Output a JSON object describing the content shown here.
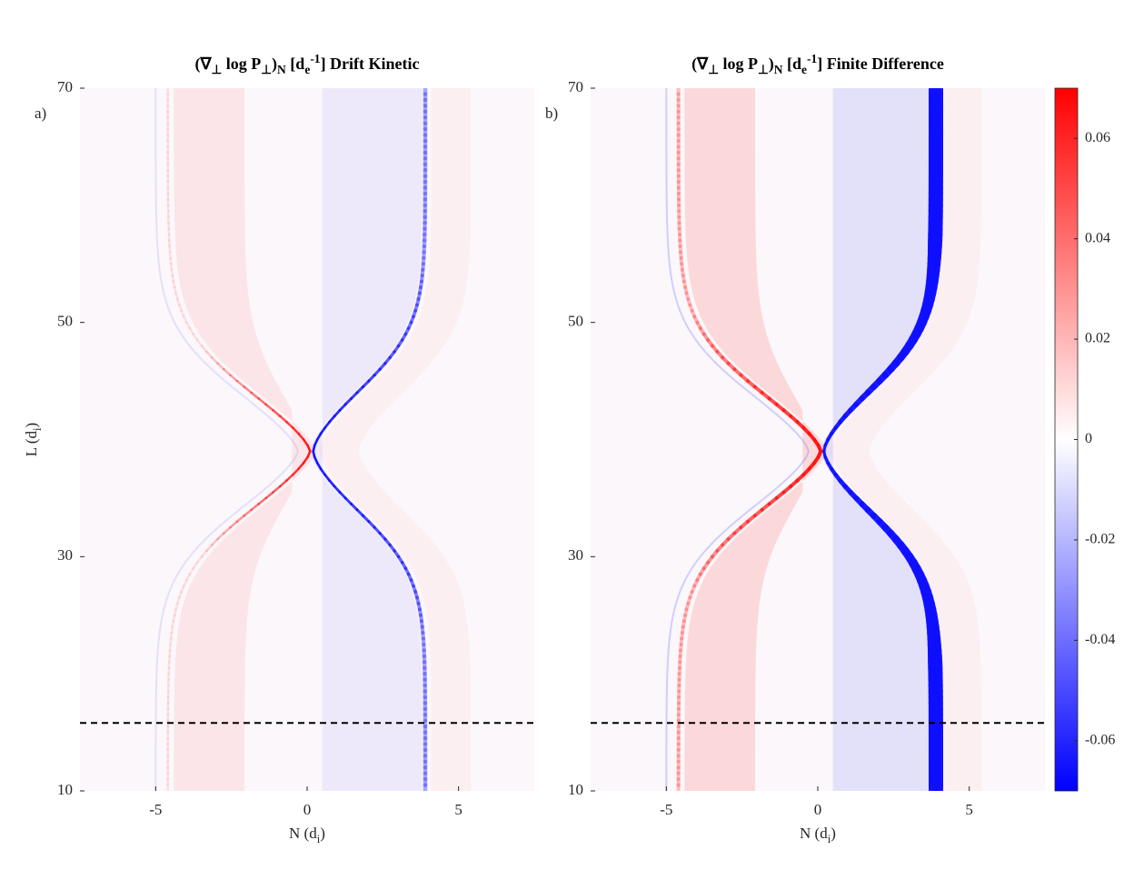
{
  "chart_data": [
    {
      "type": "heatmap",
      "title": [
        "(∇",
        "⊥",
        " log P",
        "⊥",
        ")",
        "N",
        " [d",
        "e",
        "-1",
        "] Drift Kinetic"
      ],
      "panel_label": "a)",
      "xlabel": [
        "N (d",
        "i",
        ")"
      ],
      "ylabel": [
        "L (d",
        "i",
        ")"
      ],
      "xlim": [
        -7.5,
        7.5
      ],
      "xticks": [
        -5,
        0,
        5
      ],
      "ylim": [
        10,
        70
      ],
      "yticks": [
        10,
        30,
        50,
        70
      ],
      "hline": 15.8
    },
    {
      "type": "heatmap",
      "title": [
        "(∇",
        "⊥",
        " log P",
        "⊥",
        ")",
        "N",
        " [d",
        "e",
        "-1",
        "] Finite Difference"
      ],
      "panel_label": "b)",
      "xlabel": [
        "N (d",
        "i",
        ")"
      ],
      "xlim": [
        -7.5,
        7.5
      ],
      "xticks": [
        -5,
        0,
        5
      ],
      "ylim": [
        10,
        70
      ],
      "yticks": [
        10,
        30,
        50,
        70
      ],
      "hline": 15.8,
      "colorbar": {
        "lim": [
          -0.07,
          0.07
        ],
        "ticks": [
          -0.06,
          -0.04,
          -0.02,
          0,
          0.02,
          0.04,
          0.06
        ],
        "colors": [
          "#0000ff",
          "#ffffff",
          "#ff0000"
        ]
      }
    }
  ]
}
